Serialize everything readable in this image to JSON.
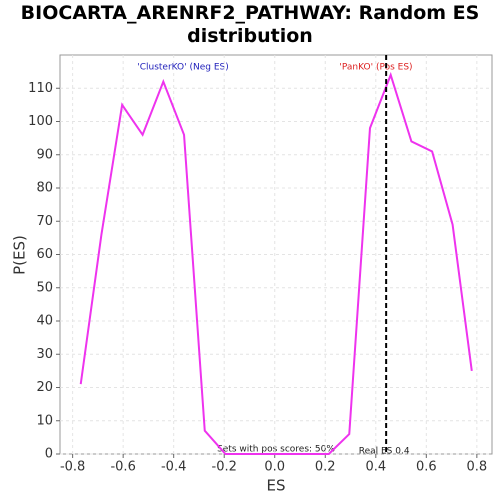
{
  "chart_data": {
    "type": "line",
    "title": "BIOCARTA_ARENRF2_PATHWAY: Random ES distribution",
    "x_label": "ES",
    "y_label": "P(ES)",
    "x": [
      -0.768,
      -0.686,
      -0.604,
      -0.523,
      -0.441,
      -0.359,
      -0.277,
      -0.195,
      -0.114,
      -0.032,
      0.05,
      0.132,
      0.214,
      0.295,
      0.377,
      0.459,
      0.541,
      0.623,
      0.704,
      0.78
    ],
    "series": [
      {
        "name": "P(ES)",
        "color": "#ee33ee",
        "values": [
          21,
          66,
          105,
          96,
          112,
          96,
          7,
          0,
          0,
          0,
          0,
          0,
          0,
          6,
          98,
          114,
          94,
          91,
          69,
          25
        ]
      }
    ],
    "xlim": [
      -0.85,
      0.86
    ],
    "ylim": [
      0,
      120
    ],
    "xticks": [
      -0.8,
      -0.6,
      -0.4,
      -0.2,
      {
        "value": 0,
        "label": "0.0"
      },
      0.2,
      0.4,
      0.6,
      0.8
    ],
    "yticks": [
      0,
      10,
      20,
      30,
      40,
      50,
      60,
      70,
      80,
      90,
      100,
      110
    ],
    "grid": true,
    "real_es": {
      "value": 0.441,
      "label": "Real ES 0.4"
    },
    "annotations": {
      "neg": "'ClusterKO' (Neg ES)",
      "pos": "'PanKO' (Pos ES)",
      "sets": "Sets with pos scores: 50%"
    }
  }
}
